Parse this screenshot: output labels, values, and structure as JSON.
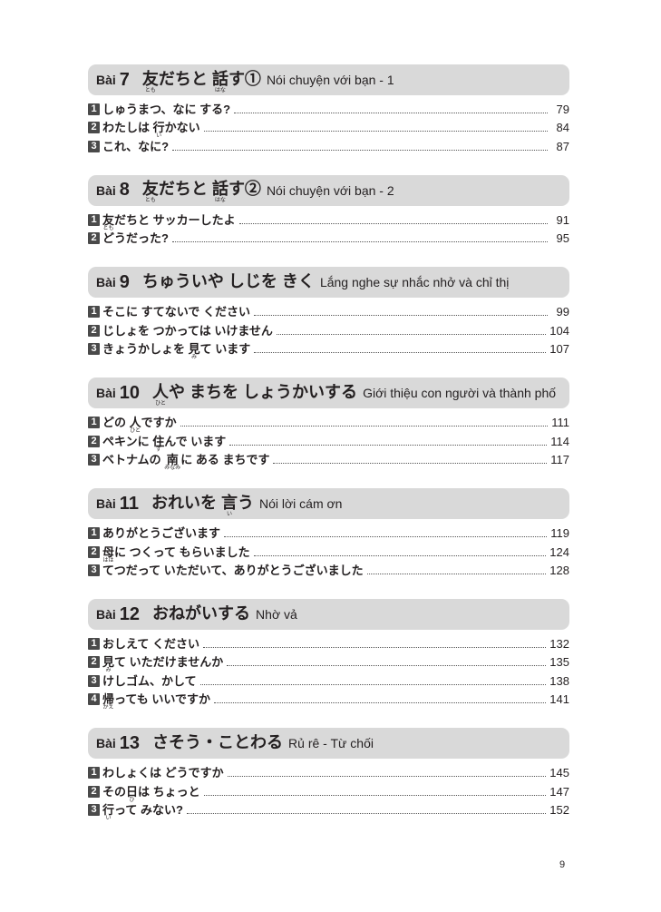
{
  "page_number": "9",
  "colors": {
    "header_bg": "#d9d9d9",
    "number_box": "#4a4a4a"
  },
  "sections": [
    {
      "bai": "Bài",
      "num": "7",
      "jp": [
        {
          "t": "友",
          "r": "とも"
        },
        {
          "t": "だちと "
        },
        {
          "t": "話",
          "r": "はな"
        },
        {
          "t": "す①"
        }
      ],
      "vi": "Nói chuyện với bạn - 1",
      "items": [
        {
          "n": "1",
          "parts": [
            {
              "t": "しゅうまつ、なに する?"
            }
          ],
          "page": "79"
        },
        {
          "n": "2",
          "parts": [
            {
              "t": "わたしは "
            },
            {
              "t": "行",
              "r": "い"
            },
            {
              "t": "かない"
            }
          ],
          "page": "84"
        },
        {
          "n": "3",
          "parts": [
            {
              "t": "これ、なに?"
            }
          ],
          "page": "87"
        }
      ]
    },
    {
      "bai": "Bài",
      "num": "8",
      "jp": [
        {
          "t": "友",
          "r": "とも"
        },
        {
          "t": "だちと "
        },
        {
          "t": "話",
          "r": "はな"
        },
        {
          "t": "す②"
        }
      ],
      "vi": "Nói chuyện với bạn - 2",
      "items": [
        {
          "n": "1",
          "parts": [
            {
              "t": "友",
              "r": "とも"
            },
            {
              "t": "だちと サッカーしたよ"
            }
          ],
          "page": "91"
        },
        {
          "n": "2",
          "parts": [
            {
              "t": "どうだった?"
            }
          ],
          "page": "95"
        }
      ]
    },
    {
      "bai": "Bài",
      "num": "9",
      "jp": [
        {
          "t": "ちゅういや しじを きく"
        }
      ],
      "vi": "Lắng nghe sự nhắc nhở và chỉ thị",
      "items": [
        {
          "n": "1",
          "parts": [
            {
              "t": "そこに すてないで ください"
            }
          ],
          "page": "99"
        },
        {
          "n": "2",
          "parts": [
            {
              "t": "じしょを つかっては いけません"
            }
          ],
          "page": "104"
        },
        {
          "n": "3",
          "parts": [
            {
              "t": "きょうかしょを "
            },
            {
              "t": "見",
              "r": "み"
            },
            {
              "t": "て います"
            }
          ],
          "page": "107"
        }
      ]
    },
    {
      "bai": "Bài",
      "num": "10",
      "jp": [
        {
          "t": "人",
          "r": "ひと"
        },
        {
          "t": "や まちを しょうかいする"
        }
      ],
      "vi": "Giới thiệu con người và thành phố",
      "items": [
        {
          "n": "1",
          "parts": [
            {
              "t": "どの "
            },
            {
              "t": "人",
              "r": "ひと"
            },
            {
              "t": "ですか"
            }
          ],
          "page": "111"
        },
        {
          "n": "2",
          "parts": [
            {
              "t": "ペキンに "
            },
            {
              "t": "住",
              "r": "す"
            },
            {
              "t": "んで います"
            }
          ],
          "page": "114"
        },
        {
          "n": "3",
          "parts": [
            {
              "t": "ベトナムの "
            },
            {
              "t": "南",
              "r": "みなみ"
            },
            {
              "t": "に ある まちです"
            }
          ],
          "page": "117"
        }
      ]
    },
    {
      "bai": "Bài",
      "num": "11",
      "jp": [
        {
          "t": "おれいを "
        },
        {
          "t": "言",
          "r": "い"
        },
        {
          "t": "う"
        }
      ],
      "vi": "Nói lời cám ơn",
      "items": [
        {
          "n": "1",
          "parts": [
            {
              "t": "ありがとうございます"
            }
          ],
          "page": "119"
        },
        {
          "n": "2",
          "parts": [
            {
              "t": "母",
              "r": "はは"
            },
            {
              "t": "に つくって もらいました"
            }
          ],
          "page": "124"
        },
        {
          "n": "3",
          "parts": [
            {
              "t": "てつだって いただいて、ありがとうございました"
            }
          ],
          "page": "128"
        }
      ]
    },
    {
      "bai": "Bài",
      "num": "12",
      "jp": [
        {
          "t": "おねがいする"
        }
      ],
      "vi": "Nhờ vả",
      "items": [
        {
          "n": "1",
          "parts": [
            {
              "t": "おしえて ください"
            }
          ],
          "page": "132"
        },
        {
          "n": "2",
          "parts": [
            {
              "t": "見",
              "r": "み"
            },
            {
              "t": "て いただけませんか"
            }
          ],
          "page": "135"
        },
        {
          "n": "3",
          "parts": [
            {
              "t": "けしゴム、かして"
            }
          ],
          "page": "138"
        },
        {
          "n": "4",
          "parts": [
            {
              "t": "帰",
              "r": "かえ"
            },
            {
              "t": "っても いいですか"
            }
          ],
          "page": "141"
        }
      ]
    },
    {
      "bai": "Bài",
      "num": "13",
      "jp": [
        {
          "t": "さそう・ことわる"
        }
      ],
      "vi": "Rủ rê - Từ chối",
      "items": [
        {
          "n": "1",
          "parts": [
            {
              "t": "わしょくは どうですか"
            }
          ],
          "page": "145"
        },
        {
          "n": "2",
          "parts": [
            {
              "t": "その"
            },
            {
              "t": "日",
              "r": "ひ"
            },
            {
              "t": "は ちょっと"
            }
          ],
          "page": "147"
        },
        {
          "n": "3",
          "parts": [
            {
              "t": "行",
              "r": "い"
            },
            {
              "t": "って みない?"
            }
          ],
          "page": "152"
        }
      ]
    }
  ]
}
